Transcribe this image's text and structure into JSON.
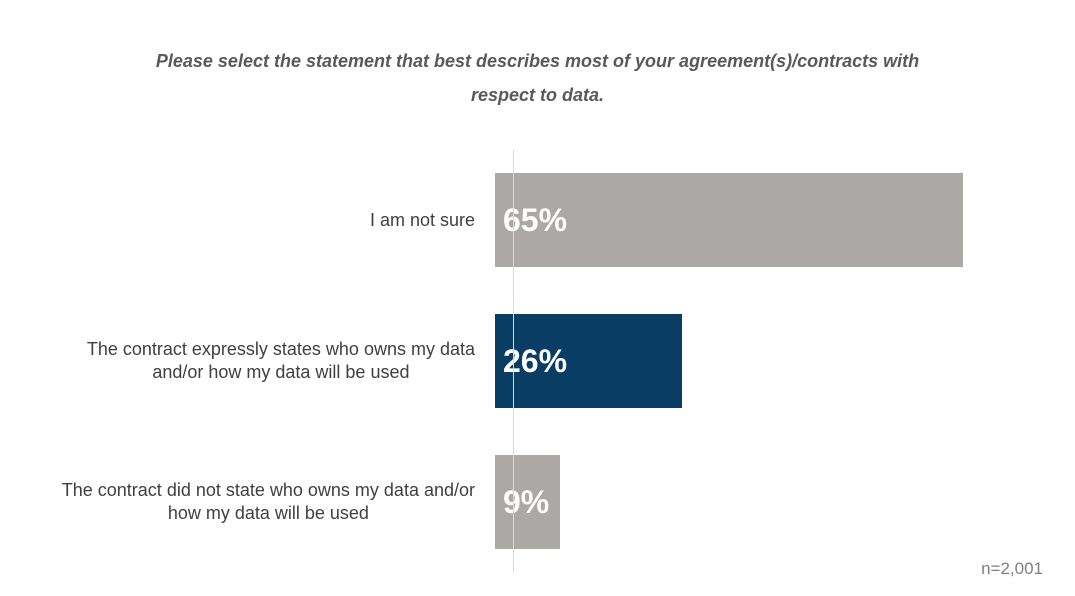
{
  "chart_data": {
    "type": "bar",
    "orientation": "horizontal",
    "title": "Please select the statement that best describes most of your agreement(s)/contracts with\nrespect to data.",
    "categories": [
      "I am not sure",
      "The contract expressly states who owns my data\nand/or how my data will be used",
      "The contract did not state who owns my data and/or\nhow my data will be used"
    ],
    "values": [
      65,
      26,
      9
    ],
    "value_labels": [
      "65%",
      "26%",
      "9%"
    ],
    "bar_colors": [
      "#ACA8A5",
      "#0A3D64",
      "#ACA8A5"
    ],
    "value_label_position": "inside-start",
    "xlim": [
      0,
      70
    ],
    "grid": false,
    "legend": false,
    "footnote": "n=2,001"
  },
  "colors": {
    "bar_gray": "#ACA8A5",
    "bar_navy": "#0A3D64",
    "axis_line": "#D9D9D9",
    "title_text": "#595959",
    "category_label_text": "#404040",
    "value_label_text": "#FFFFFF",
    "footnote_text": "#808080",
    "background": "#FFFFFF"
  }
}
